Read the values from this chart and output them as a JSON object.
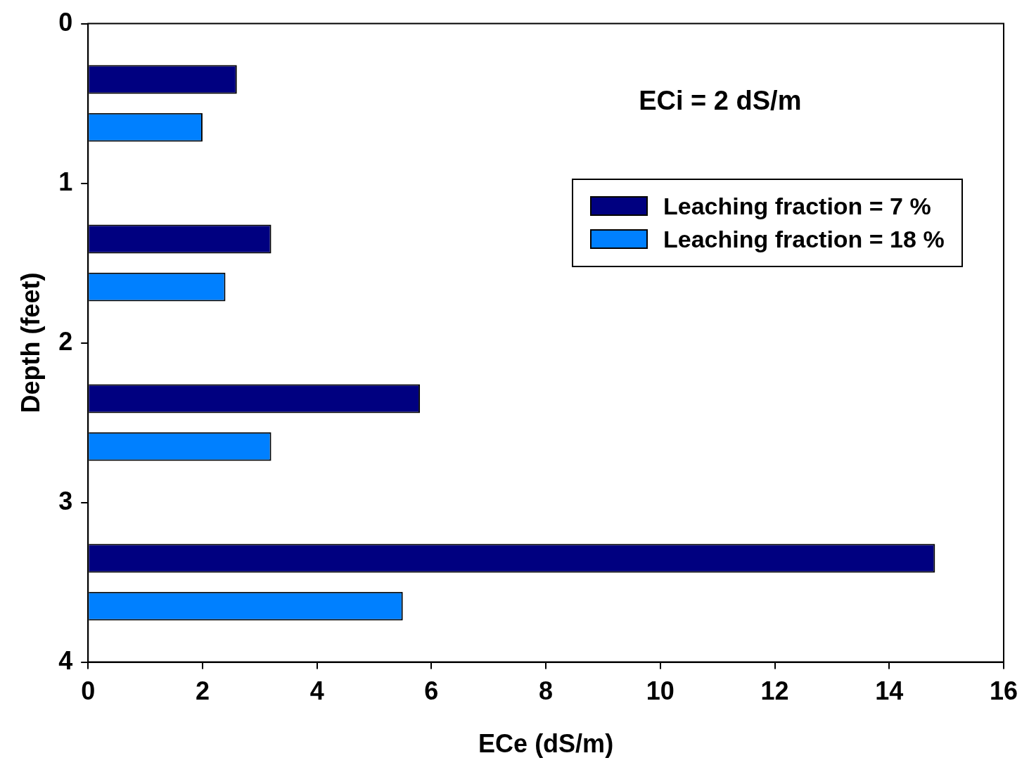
{
  "chart_data": {
    "type": "bar",
    "orientation": "horizontal",
    "x": [
      0.5,
      1.5,
      2.5,
      3.5
    ],
    "series": [
      {
        "name": "Leaching fraction = 7 %",
        "color": "#000080",
        "values": [
          2.6,
          3.2,
          5.8,
          14.8
        ]
      },
      {
        "name": "Leaching fraction = 18 %",
        "color": "#0080ff",
        "values": [
          2.0,
          2.4,
          3.2,
          5.5
        ]
      }
    ],
    "xlabel": "ECe (dS/m)",
    "ylabel": "Depth (feet)",
    "xlim": [
      0,
      16
    ],
    "xticks": [
      0,
      2,
      4,
      6,
      8,
      10,
      12,
      14,
      16
    ],
    "ylim": [
      4,
      0
    ],
    "yticks": [
      0,
      1,
      2,
      3,
      4
    ],
    "annotations": [
      "ECi = 2 dS/m"
    ],
    "grid": false,
    "legend": "top right"
  }
}
